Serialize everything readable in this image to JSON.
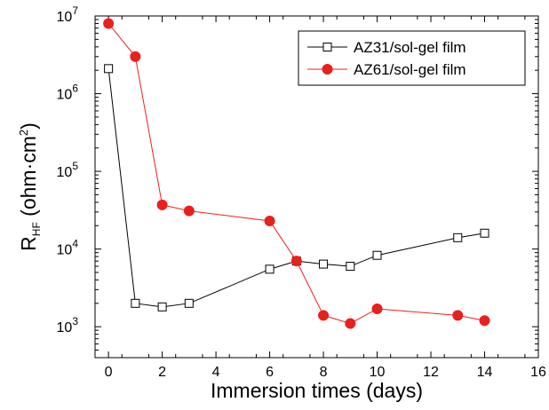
{
  "chart_data": {
    "type": "line",
    "x_axis": {
      "title": "Immersion times (days)",
      "range": [
        -0.5,
        16
      ],
      "ticks": [
        0,
        2,
        4,
        6,
        8,
        10,
        12,
        14,
        16
      ],
      "tick_labels": [
        "0",
        "2",
        "4",
        "6",
        "8",
        "10",
        "12",
        "14",
        "16"
      ]
    },
    "y_axis": {
      "title_main": "R",
      "title_sub": "HF",
      "title_unit": " (ohm·cm",
      "title_sup": "2",
      "title_close": ")",
      "scale": "log",
      "range": [
        400,
        10000000
      ],
      "tick_exponents": [
        3,
        4,
        5,
        6,
        7
      ],
      "tick_base": "10"
    },
    "legend": {
      "placement": "top-right",
      "frame": true
    },
    "grid": false,
    "series": [
      {
        "name": "AZ31/sol-gel film",
        "color": "#000000",
        "marker": "open-square",
        "x": [
          0,
          1,
          2,
          3,
          6,
          7,
          8,
          9,
          10,
          13,
          14
        ],
        "y": [
          2100000,
          2000,
          1800,
          2000,
          5500,
          7000,
          6400,
          6000,
          8300,
          14000,
          16000
        ]
      },
      {
        "name": "AZ61/sol-gel film",
        "color": "#e8211d",
        "marker": "filled-circle",
        "x": [
          0,
          1,
          2,
          3,
          6,
          7,
          8,
          9,
          10,
          13,
          14
        ],
        "y": [
          8000000,
          3000000,
          37000,
          31000,
          23000,
          7000,
          1400,
          1100,
          1700,
          1400,
          1200
        ]
      }
    ]
  }
}
